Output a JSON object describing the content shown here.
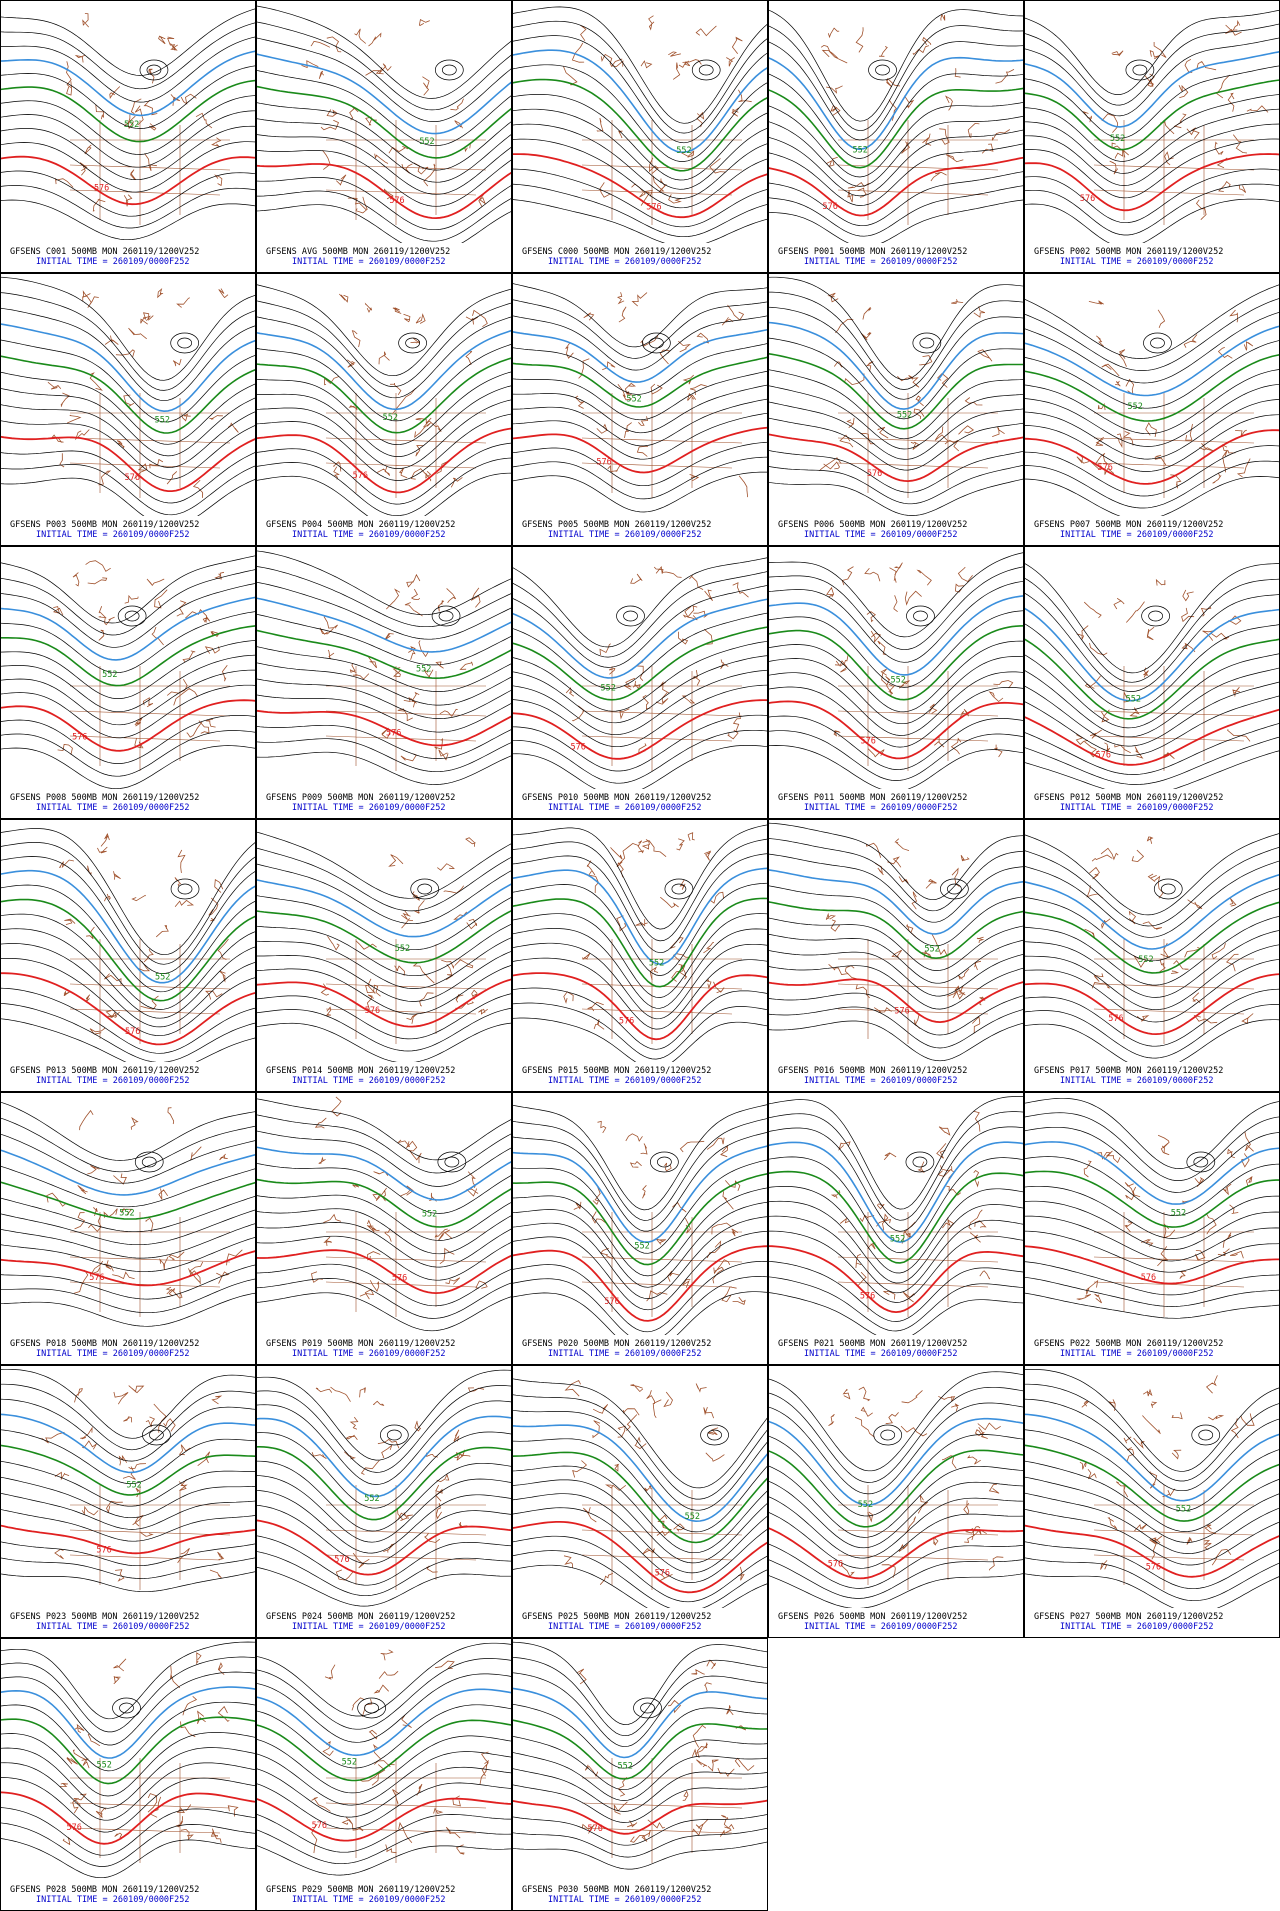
{
  "panels": [
    {
      "title": "GFSENS C001 500MB MON 260119/1200V252",
      "init": "INITIAL TIME = 260109/0000F252",
      "contour_labels": [
        "552",
        "576"
      ]
    },
    {
      "title": "GFSENS AVG 500MB MON 260119/1200V252",
      "init": "INITIAL TIME = 260109/0000F252",
      "contour_labels": [
        "552",
        "576"
      ]
    },
    {
      "title": "GFSENS C000 500MB MON 260119/1200V252",
      "init": "INITIAL TIME = 260109/0000F252",
      "contour_labels": [
        "552",
        "576"
      ]
    },
    {
      "title": "GFSENS P001 500MB MON 260119/1200V252",
      "init": "INITIAL TIME = 260109/0000F252",
      "contour_labels": [
        "552",
        "576"
      ]
    },
    {
      "title": "GFSENS P002 500MB MON 260119/1200V252",
      "init": "INITIAL TIME = 260109/0000F252",
      "contour_labels": [
        "552",
        "576"
      ]
    },
    {
      "title": "GFSENS P003 500MB MON 260119/1200V252",
      "init": "INITIAL TIME = 260109/0000F252",
      "contour_labels": [
        "552",
        "576"
      ]
    },
    {
      "title": "GFSENS P004 500MB MON 260119/1200V252",
      "init": "INITIAL TIME = 260109/0000F252",
      "contour_labels": [
        "552",
        "576"
      ]
    },
    {
      "title": "GFSENS P005 500MB MON 260119/1200V252",
      "init": "INITIAL TIME = 260109/0000F252",
      "contour_labels": [
        "552",
        "576"
      ]
    },
    {
      "title": "GFSENS P006 500MB MON 260119/1200V252",
      "init": "INITIAL TIME = 260109/0000F252",
      "contour_labels": [
        "552",
        "576"
      ]
    },
    {
      "title": "GFSENS P007 500MB MON 260119/1200V252",
      "init": "INITIAL TIME = 260109/0000F252",
      "contour_labels": [
        "552",
        "576"
      ]
    },
    {
      "title": "GFSENS P008 500MB MON 260119/1200V252",
      "init": "INITIAL TIME = 260109/0000F252",
      "contour_labels": [
        "552",
        "576"
      ]
    },
    {
      "title": "GFSENS P009 500MB MON 260119/1200V252",
      "init": "INITIAL TIME = 260109/0000F252",
      "contour_labels": [
        "552",
        "576"
      ]
    },
    {
      "title": "GFSENS P010 500MB MON 260119/1200V252",
      "init": "INITIAL TIME = 260109/0000F252",
      "contour_labels": [
        "552",
        "576"
      ]
    },
    {
      "title": "GFSENS P011 500MB MON 260119/1200V252",
      "init": "INITIAL TIME = 260109/0000F252",
      "contour_labels": [
        "552",
        "576"
      ]
    },
    {
      "title": "GFSENS P012 500MB MON 260119/1200V252",
      "init": "INITIAL TIME = 260109/0000F252",
      "contour_labels": [
        "552",
        "576"
      ]
    },
    {
      "title": "GFSENS P013 500MB MON 260119/1200V252",
      "init": "INITIAL TIME = 260109/0000F252",
      "contour_labels": [
        "552",
        "576"
      ]
    },
    {
      "title": "GFSENS P014 500MB MON 260119/1200V252",
      "init": "INITIAL TIME = 260109/0000F252",
      "contour_labels": [
        "552",
        "576"
      ]
    },
    {
      "title": "GFSENS P015 500MB MON 260119/1200V252",
      "init": "INITIAL TIME = 260109/0000F252",
      "contour_labels": [
        "552",
        "576"
      ]
    },
    {
      "title": "GFSENS P016 500MB MON 260119/1200V252",
      "init": "INITIAL TIME = 260109/0000F252",
      "contour_labels": [
        "552",
        "576"
      ]
    },
    {
      "title": "GFSENS P017 500MB MON 260119/1200V252",
      "init": "INITIAL TIME = 260109/0000F252",
      "contour_labels": [
        "552",
        "576"
      ]
    },
    {
      "title": "GFSENS P018 500MB MON 260119/1200V252",
      "init": "INITIAL TIME = 260109/0000F252",
      "contour_labels": [
        "552",
        "576"
      ]
    },
    {
      "title": "GFSENS P019 500MB MON 260119/1200V252",
      "init": "INITIAL TIME = 260109/0000F252",
      "contour_labels": [
        "552",
        "576"
      ]
    },
    {
      "title": "GFSENS P020 500MB MON 260119/1200V252",
      "init": "INITIAL TIME = 260109/0000F252",
      "contour_labels": [
        "552",
        "576"
      ]
    },
    {
      "title": "GFSENS P021 500MB MON 260119/1200V252",
      "init": "INITIAL TIME = 260109/0000F252",
      "contour_labels": [
        "552",
        "576"
      ]
    },
    {
      "title": "GFSENS P022 500MB MON 260119/1200V252",
      "init": "INITIAL TIME = 260109/0000F252",
      "contour_labels": [
        "552",
        "576"
      ]
    },
    {
      "title": "GFSENS P023 500MB MON 260119/1200V252",
      "init": "INITIAL TIME = 260109/0000F252",
      "contour_labels": [
        "552",
        "576"
      ]
    },
    {
      "title": "GFSENS P024 500MB MON 260119/1200V252",
      "init": "INITIAL TIME = 260109/0000F252",
      "contour_labels": [
        "552",
        "576"
      ]
    },
    {
      "title": "GFSENS P025 500MB MON 260119/1200V252",
      "init": "INITIAL TIME = 260109/0000F252",
      "contour_labels": [
        "552",
        "576"
      ]
    },
    {
      "title": "GFSENS P026 500MB MON 260119/1200V252",
      "init": "INITIAL TIME = 260109/0000F252",
      "contour_labels": [
        "552",
        "576"
      ]
    },
    {
      "title": "GFSENS P027 500MB MON 260119/1200V252",
      "init": "INITIAL TIME = 260109/0000F252",
      "contour_labels": [
        "552",
        "576"
      ]
    },
    {
      "title": "GFSENS P028 500MB MON 260119/1200V252",
      "init": "INITIAL TIME = 260109/0000F252",
      "contour_labels": [
        "552",
        "576"
      ]
    },
    {
      "title": "GFSENS P029 500MB MON 260119/1200V252",
      "init": "INITIAL TIME = 260109/0000F252",
      "contour_labels": [
        "552",
        "576"
      ]
    },
    {
      "title": "GFSENS P030 500MB MON 260119/1200V252",
      "init": "INITIAL TIME = 260109/0000F252",
      "contour_labels": [
        "552",
        "576"
      ]
    }
  ]
}
